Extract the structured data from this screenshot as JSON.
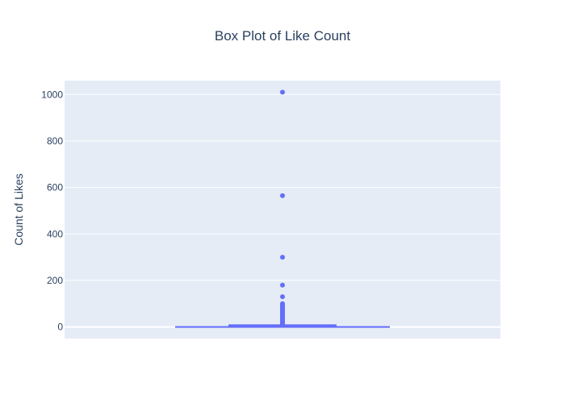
{
  "chart_data": {
    "type": "box",
    "title": "Box Plot of Like Count",
    "xlabel": "",
    "ylabel": "Count of Likes",
    "ylim": [
      -50,
      1060
    ],
    "yticks": [
      0,
      200,
      400,
      600,
      800,
      1000
    ],
    "grid": true,
    "legend": "none",
    "box": {
      "min": 0,
      "q1": 0,
      "median": 0,
      "q3": 4,
      "upper_fence": 10
    },
    "outliers": [
      1010,
      565,
      300,
      180,
      130,
      100,
      95,
      90,
      85,
      80,
      75,
      70,
      65,
      60,
      55,
      50,
      45,
      40,
      35,
      30,
      25,
      20,
      15,
      12
    ],
    "colors": {
      "box": "#636efa",
      "plot_bg": "#e5ecf6",
      "grid": "#ffffff",
      "text": "#2a3f5f"
    }
  }
}
